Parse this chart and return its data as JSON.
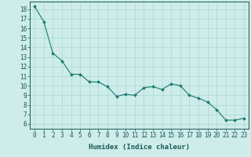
{
  "x": [
    0,
    1,
    2,
    3,
    4,
    5,
    6,
    7,
    8,
    9,
    10,
    11,
    12,
    13,
    14,
    15,
    16,
    17,
    18,
    19,
    20,
    21,
    22,
    23
  ],
  "y": [
    18.3,
    16.7,
    13.4,
    12.6,
    11.2,
    11.2,
    10.4,
    10.4,
    9.9,
    8.9,
    9.1,
    9.0,
    9.8,
    9.9,
    9.6,
    10.2,
    10.0,
    9.0,
    8.7,
    8.3,
    7.5,
    6.4,
    6.4,
    6.6
  ],
  "line_color": "#1a7a6e",
  "marker": "D",
  "marker_size": 2.0,
  "bg_color": "#cdecea",
  "grid_color": "#aad8d3",
  "xlabel": "Humidex (Indice chaleur)",
  "xlim": [
    -0.5,
    23.5
  ],
  "ylim": [
    5.5,
    18.8
  ],
  "xticks": [
    0,
    1,
    2,
    3,
    4,
    5,
    6,
    7,
    8,
    9,
    10,
    11,
    12,
    13,
    14,
    15,
    16,
    17,
    18,
    19,
    20,
    21,
    22,
    23
  ],
  "yticks": [
    6,
    7,
    8,
    9,
    10,
    11,
    12,
    13,
    14,
    15,
    16,
    17,
    18
  ],
  "axis_fontsize": 5.5,
  "label_fontsize": 6.5
}
